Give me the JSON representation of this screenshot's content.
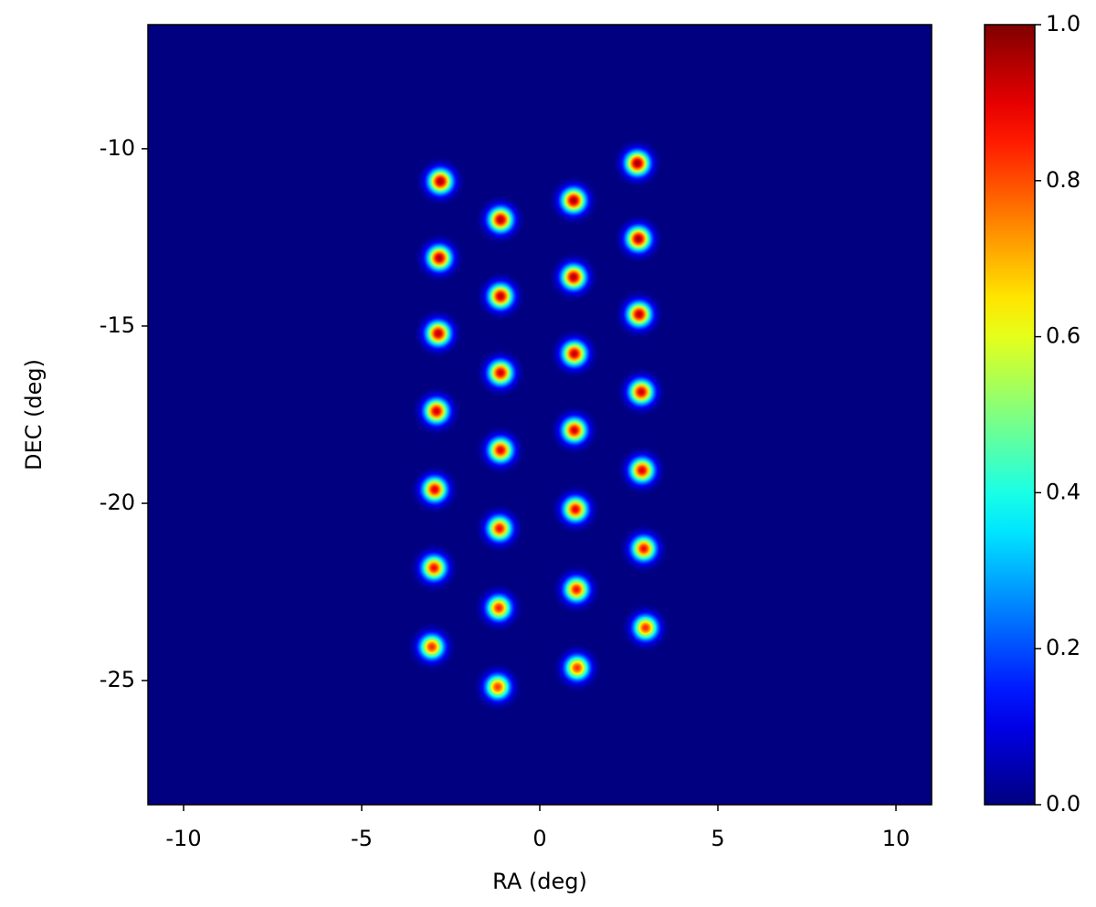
{
  "chart_data": {
    "type": "scatter",
    "colormap": "jet",
    "xlabel": "RA (deg)",
    "ylabel": "DEC (deg)",
    "x": [
      -2.79,
      -2.82,
      -2.85,
      -2.9,
      -2.95,
      -2.97,
      -3.03,
      -1.1,
      -1.1,
      -1.1,
      -1.1,
      -1.13,
      -1.15,
      -1.18,
      0.95,
      0.95,
      0.97,
      0.97,
      1.0,
      1.03,
      1.05,
      2.74,
      2.77,
      2.79,
      2.85,
      2.87,
      2.92,
      2.97
    ],
    "y": [
      -10.92,
      -13.08,
      -15.21,
      -17.4,
      -19.61,
      -21.82,
      -24.05,
      -12.0,
      -14.16,
      -16.32,
      -18.5,
      -20.71,
      -22.95,
      -25.18,
      -11.46,
      -13.62,
      -15.78,
      -17.94,
      -20.17,
      -22.43,
      -24.64,
      -10.41,
      -12.54,
      -14.67,
      -16.86,
      -19.07,
      -21.28,
      -23.51
    ],
    "values": [
      0.97,
      0.96,
      0.95,
      0.93,
      0.91,
      0.88,
      0.84,
      0.96,
      0.95,
      0.93,
      0.91,
      0.88,
      0.85,
      0.82,
      0.97,
      0.96,
      0.94,
      0.92,
      0.9,
      0.87,
      0.83,
      0.98,
      0.97,
      0.95,
      0.93,
      0.91,
      0.88,
      0.84
    ],
    "xlim": [
      -11,
      11
    ],
    "ylim": [
      -28.5,
      -6.5
    ],
    "xticks": [
      -10,
      -5,
      0,
      5,
      10
    ],
    "yticks": [
      -25,
      -20,
      -15,
      -10
    ],
    "colorbar": {
      "lim": [
        0,
        1
      ],
      "ticks": [
        {
          "value": 0,
          "label": "0.0"
        },
        0.2,
        0.4,
        0.6,
        0.8,
        {
          "value": 1,
          "label": "1.0"
        }
      ]
    }
  }
}
